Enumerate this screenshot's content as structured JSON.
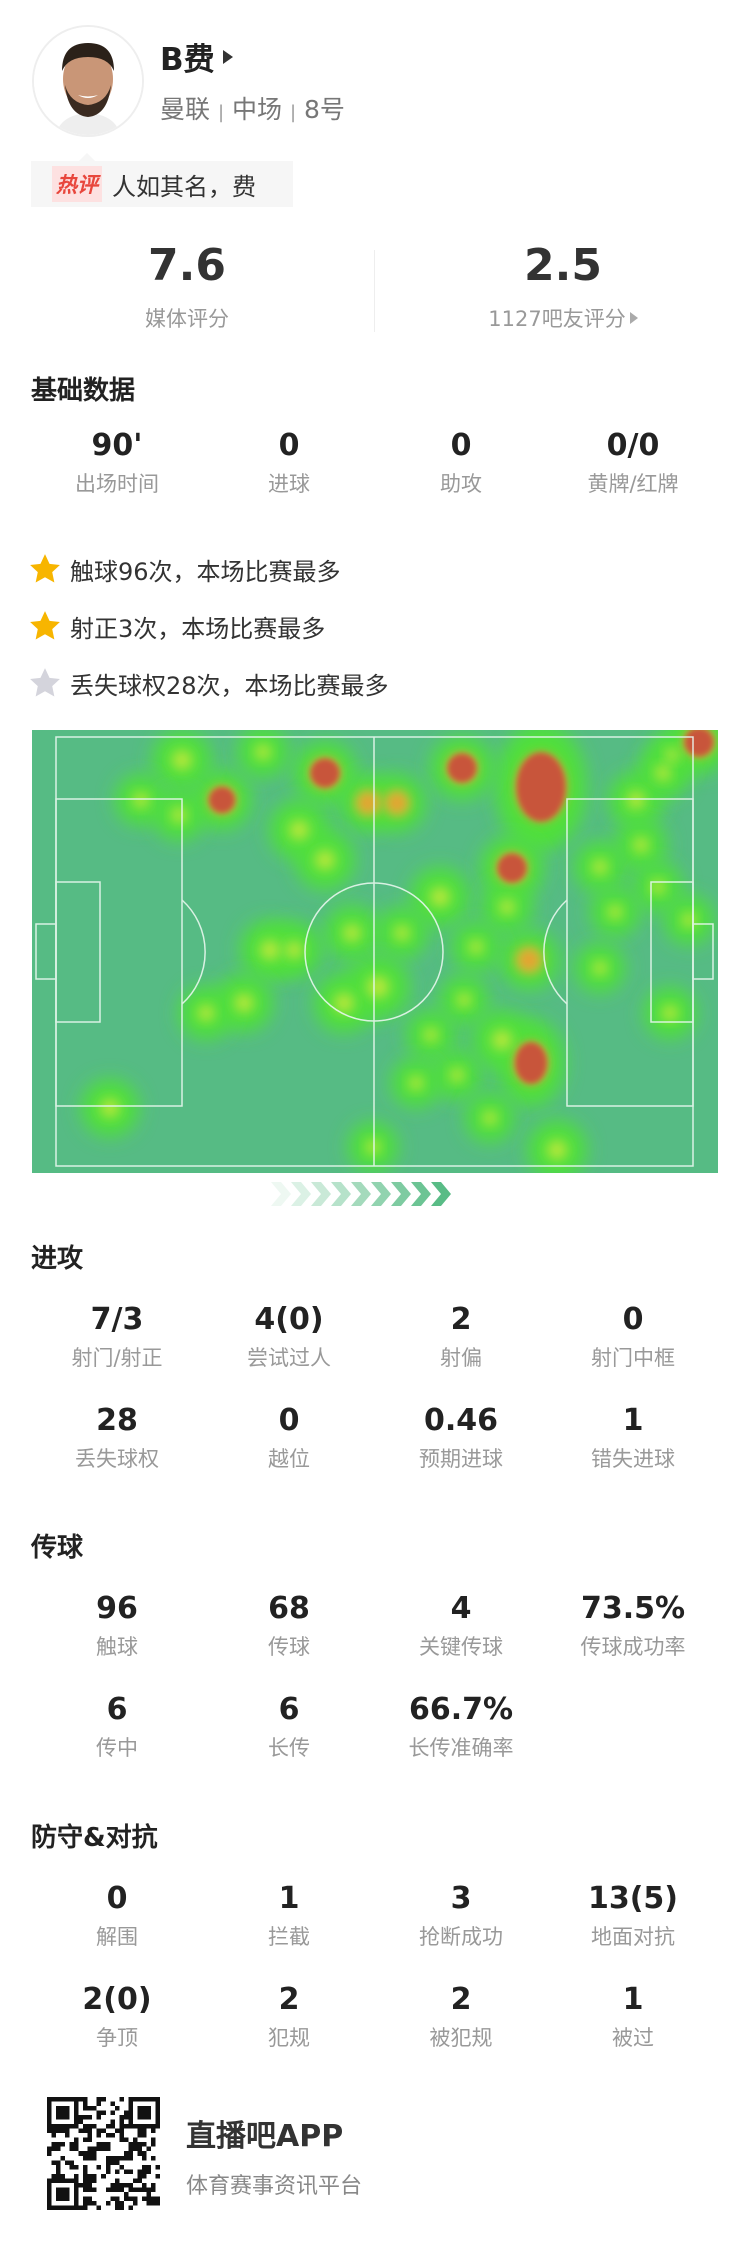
{
  "player": {
    "name": "B费",
    "team": "曼联",
    "position": "中场",
    "number": "8号",
    "separator": "|"
  },
  "hot_comment": {
    "tag": "热评",
    "text": "人如其名，费"
  },
  "ratings": {
    "media": {
      "value": "7.6",
      "label": "媒体评分"
    },
    "fans": {
      "value": "2.5",
      "label": "1127吧友评分"
    }
  },
  "basic": {
    "title": "基础数据",
    "stats": [
      {
        "value": "90'",
        "label": "出场时间"
      },
      {
        "value": "0",
        "label": "进球"
      },
      {
        "value": "0",
        "label": "助攻"
      },
      {
        "value": "0/0",
        "label": "黄牌/红牌"
      }
    ]
  },
  "highlights": [
    {
      "text": "触球96次，本场比赛最多",
      "star": "gold"
    },
    {
      "text": "射正3次，本场比赛最多",
      "star": "gold"
    },
    {
      "text": "丢失球权28次，本场比赛最多",
      "star": "silver"
    }
  ],
  "colors": {
    "gold_star": "#f7b500",
    "silver_star": "#d4d4dc",
    "pitch": "#56bb84",
    "hot_red": "#e8463c"
  },
  "attack": {
    "title": "进攻",
    "stats": [
      {
        "value": "7/3",
        "label": "射门/射正"
      },
      {
        "value": "4(0)",
        "label": "尝试过人"
      },
      {
        "value": "2",
        "label": "射偏"
      },
      {
        "value": "0",
        "label": "射门中框"
      },
      {
        "value": "28",
        "label": "丢失球权"
      },
      {
        "value": "0",
        "label": "越位"
      },
      {
        "value": "0.46",
        "label": "预期进球"
      },
      {
        "value": "1",
        "label": "错失进球"
      }
    ]
  },
  "passing": {
    "title": "传球",
    "stats": [
      {
        "value": "96",
        "label": "触球"
      },
      {
        "value": "68",
        "label": "传球"
      },
      {
        "value": "4",
        "label": "关键传球"
      },
      {
        "value": "73.5%",
        "label": "传球成功率"
      },
      {
        "value": "6",
        "label": "传中"
      },
      {
        "value": "6",
        "label": "长传"
      },
      {
        "value": "66.7%",
        "label": "长传准确率"
      }
    ]
  },
  "defense": {
    "title": "防守&对抗",
    "stats": [
      {
        "value": "0",
        "label": "解围"
      },
      {
        "value": "1",
        "label": "拦截"
      },
      {
        "value": "3",
        "label": "抢断成功"
      },
      {
        "value": "13(5)",
        "label": "地面对抗"
      },
      {
        "value": "2(0)",
        "label": "争顶"
      },
      {
        "value": "2",
        "label": "犯规"
      },
      {
        "value": "2",
        "label": "被犯规"
      },
      {
        "value": "1",
        "label": "被过"
      }
    ]
  },
  "footer": {
    "app_name": "直播吧APP",
    "slogan": "体育赛事资讯平台"
  }
}
